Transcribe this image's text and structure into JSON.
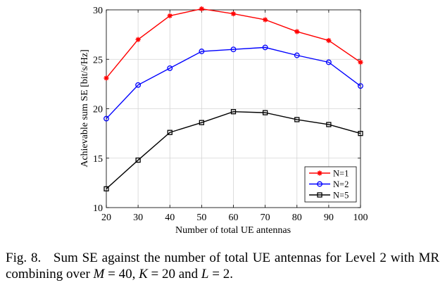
{
  "chart_data": {
    "type": "line",
    "title": "",
    "xlabel": "Number of total UE antennas",
    "ylabel": "Achievable sum SE [bit/s/Hz]",
    "x": [
      20,
      30,
      40,
      50,
      60,
      70,
      80,
      90,
      100
    ],
    "xlim": [
      20,
      100
    ],
    "ylim": [
      10,
      30
    ],
    "xticks": [
      20,
      30,
      40,
      50,
      60,
      70,
      80,
      90,
      100
    ],
    "yticks": [
      10,
      15,
      20,
      25,
      30
    ],
    "grid": true,
    "legend_position": "bottom-right",
    "series": [
      {
        "name": "N=1",
        "color": "#ff0000",
        "marker": "asterisk",
        "values": [
          23.1,
          27.0,
          29.4,
          30.1,
          29.6,
          29.0,
          27.8,
          26.9,
          24.7
        ]
      },
      {
        "name": "N=2",
        "color": "#0000ff",
        "marker": "circle",
        "values": [
          19.0,
          22.4,
          24.1,
          25.8,
          26.0,
          26.2,
          25.4,
          24.7,
          22.3
        ]
      },
      {
        "name": "N=5",
        "color": "#000000",
        "marker": "square",
        "values": [
          11.9,
          14.8,
          17.6,
          18.6,
          19.7,
          19.6,
          18.9,
          18.4,
          17.5
        ]
      }
    ]
  },
  "caption": {
    "label": "Fig. 8.",
    "text_before": "Sum SE against the number of total UE antennas for Level 2 with MR combining over ",
    "m_var": "M",
    "m_eq": " = 40, ",
    "k_var": "K",
    "k_eq": " = 20 and ",
    "l_var": "L",
    "l_eq": " = 2."
  }
}
